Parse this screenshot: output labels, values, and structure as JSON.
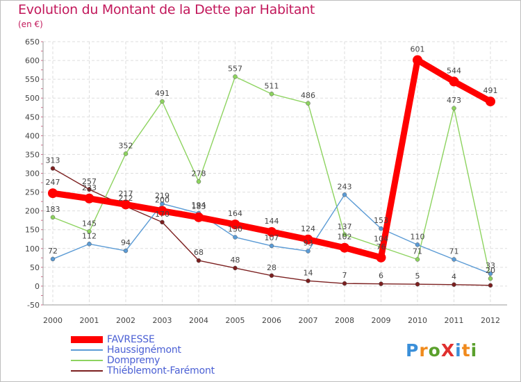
{
  "title": "Evolution du Montant de la Dette par Habitant",
  "unit_label": "(en €)",
  "logo": {
    "text": "ProXiti",
    "colors": [
      "#3a8fd9",
      "#f08a1c",
      "#5aa02c",
      "#e0302f",
      "#3a8fd9",
      "#f08a1c",
      "#5aa02c"
    ]
  },
  "chart_data": {
    "type": "line",
    "x": [
      "2000",
      "2001",
      "2002",
      "2003",
      "2004",
      "2005",
      "2006",
      "2007",
      "2008",
      "2009",
      "2010",
      "2011",
      "2012"
    ],
    "ylim": [
      -50,
      650
    ],
    "yticks": [
      -50,
      0,
      50,
      100,
      150,
      200,
      250,
      300,
      350,
      400,
      450,
      500,
      550,
      600,
      650
    ],
    "grid": true,
    "legend_position": "bottom-left",
    "series": [
      {
        "name": "Thiéblemont-Farémont",
        "color": "#7b1f1f",
        "values": [
          313,
          257,
          212,
          170,
          68,
          48,
          28,
          14,
          7,
          6,
          5,
          4,
          2
        ],
        "labels": [
          "313",
          "257",
          "212",
          "170",
          "68",
          "48",
          "28",
          "14",
          "7",
          "6",
          "5",
          "4",
          ""
        ]
      },
      {
        "name": "Dompremy",
        "color": "#8dd35f",
        "values": [
          183,
          145,
          352,
          491,
          278,
          557,
          511,
          486,
          137,
          104,
          71,
          473,
          20
        ],
        "labels": [
          "183",
          "145",
          "352",
          "491",
          "278",
          "557",
          "511",
          "486",
          "137",
          "104",
          "71",
          "473",
          "20"
        ]
      },
      {
        "name": "Haussignémont",
        "color": "#5b9bd5",
        "values": [
          72,
          112,
          94,
          219,
          194,
          130,
          107,
          93,
          243,
          153,
          110,
          71,
          33
        ],
        "labels": [
          "72",
          "112",
          "94",
          "219",
          "194",
          "130",
          "107",
          "93",
          "243",
          "153",
          "110",
          "71",
          "33"
        ]
      },
      {
        "name": "FAVRESSE",
        "color": "#ff0000",
        "values": [
          247,
          233,
          217,
          200,
          183,
          164,
          144,
          124,
          102,
          76,
          601,
          544,
          491
        ],
        "labels": [
          "247",
          "233",
          "217",
          "200",
          "183",
          "164",
          "144",
          "124",
          "102",
          "76",
          "601",
          "544",
          "491"
        ]
      }
    ]
  },
  "legend": [
    {
      "name": "FAVRESSE",
      "color": "#ff0000",
      "thickness": 10
    },
    {
      "name": "Haussignémont",
      "color": "#5b9bd5",
      "thickness": 2
    },
    {
      "name": "Dompremy",
      "color": "#8dd35f",
      "thickness": 2
    },
    {
      "name": "Thiéblemont-Farémont",
      "color": "#7b1f1f",
      "thickness": 2
    }
  ]
}
